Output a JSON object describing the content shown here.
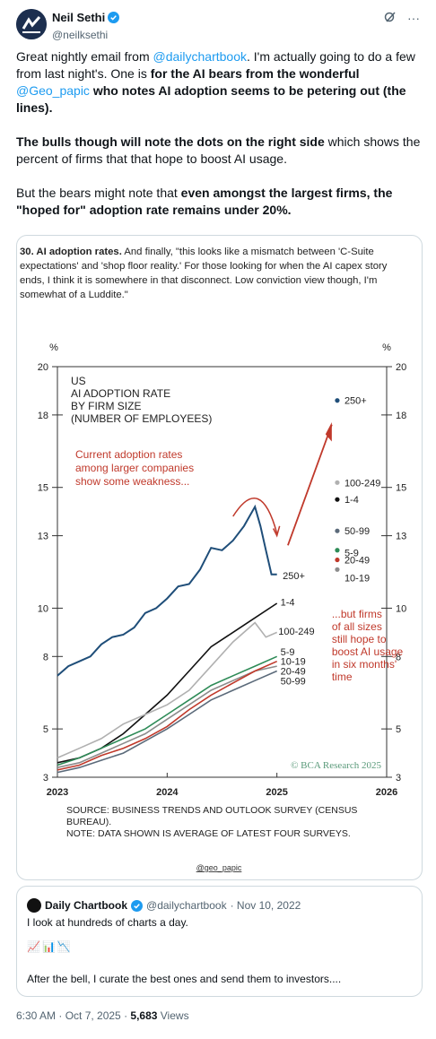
{
  "tweet": {
    "author_name": "Neil Sethi",
    "handle": "@neilksethi",
    "p1_a": "Great nightly email from ",
    "p1_mention1": "@dailychartbook",
    "p1_b": ".  I'm actually going to do a few from last night's. One is ",
    "p1_bold1": "for the AI bears from the wonderful",
    "p1_mention2": "@Geo_papic",
    "p1_bold2": " who notes AI adoption seems to be petering out (the lines).",
    "p2_bold": "The bulls though will note the dots on the right side",
    "p2_rest": " which shows the percent of firms that that hope to boost AI usage.",
    "p3_a": "But the bears might note that ",
    "p3_bold": "even amongst the largest firms, the \"hoped for\" adoption rate remains under 20%.",
    "timestamp": "6:30 AM · Oct 7, 2025 · ",
    "views_count": "5,683",
    "views_label": " Views"
  },
  "media": {
    "caption_bold": "30. AI adoption rates.",
    "caption_text": " And finally, \"this looks like a mismatch between 'C-Suite expectations' and 'shop floor reality.' For those looking for when the AI capex story ends, I think it is somewhere in that disconnect. Low conviction view though, I'm somewhat of a Luddite.\"",
    "credit": "@geo_papic"
  },
  "chart_data": {
    "type": "line",
    "title": "US\nAI ADOPTION RATE\nBY FIRM SIZE\n(NUMBER OF EMPLOYEES)",
    "ylabel": "%",
    "ylim": [
      3,
      20
    ],
    "yticks": [
      3,
      5,
      8,
      10,
      13,
      15,
      18,
      20
    ],
    "xlim": [
      2023,
      2026
    ],
    "xticks": [
      "2023",
      "2024",
      "2025",
      "2026"
    ],
    "annotation_left": "Current adoption rates\namong larger companies\nshow some weakness...",
    "annotation_right": "...but firms\nof all sizes\nstill hope to\nboost AI usage\nin six months'\ntime",
    "copyright": "© BCA Research 2025",
    "source": "SOURCE: BUSINESS TRENDS AND OUTLOOK SURVEY (CENSUS\nBUREAU).\nNOTE: DATA SHOWN IS AVERAGE OF LATEST FOUR SURVEYS.",
    "series": [
      {
        "name": "250+",
        "color": "#1f4e79",
        "x": [
          2023.0,
          2023.1,
          2023.2,
          2023.3,
          2023.4,
          2023.5,
          2023.6,
          2023.7,
          2023.8,
          2023.9,
          2024.0,
          2024.1,
          2024.2,
          2024.3,
          2024.4,
          2024.5,
          2024.6,
          2024.7,
          2024.75,
          2024.8,
          2024.85,
          2024.9,
          2024.95,
          2025.0
        ],
        "values": [
          7.2,
          7.6,
          7.8,
          8.0,
          8.5,
          8.8,
          8.9,
          9.2,
          9.8,
          10.0,
          10.4,
          10.9,
          11.0,
          11.6,
          12.5,
          12.4,
          12.8,
          13.4,
          13.8,
          14.2,
          13.4,
          12.4,
          11.4,
          11.4
        ]
      },
      {
        "name": "1-4",
        "color": "#111111",
        "x": [
          2023.0,
          2023.2,
          2023.4,
          2023.6,
          2023.8,
          2024.0,
          2024.2,
          2024.4,
          2024.6,
          2024.8,
          2025.0
        ],
        "values": [
          3.6,
          3.8,
          4.2,
          4.8,
          5.6,
          6.4,
          7.4,
          8.4,
          9.0,
          9.6,
          10.2
        ]
      },
      {
        "name": "100-249",
        "color": "#b0b0b0",
        "x": [
          2023.0,
          2023.2,
          2023.4,
          2023.6,
          2023.8,
          2024.0,
          2024.2,
          2024.4,
          2024.6,
          2024.8,
          2024.9,
          2025.0
        ],
        "values": [
          3.8,
          4.2,
          4.6,
          5.2,
          5.6,
          6.0,
          6.6,
          7.6,
          8.6,
          9.4,
          8.8,
          9.0
        ]
      },
      {
        "name": "5-9",
        "color": "#2e8b57",
        "x": [
          2023.0,
          2023.2,
          2023.4,
          2023.6,
          2023.8,
          2024.0,
          2024.2,
          2024.4,
          2024.6,
          2024.8,
          2025.0
        ],
        "values": [
          3.5,
          3.8,
          4.2,
          4.6,
          5.0,
          5.6,
          6.2,
          6.8,
          7.2,
          7.6,
          8.0
        ]
      },
      {
        "name": "10-19",
        "color": "#8c8c8c",
        "x": [
          2023.0,
          2023.2,
          2023.4,
          2023.6,
          2023.8,
          2024.0,
          2024.2,
          2024.4,
          2024.6,
          2024.8,
          2025.0
        ],
        "values": [
          3.4,
          3.6,
          4.0,
          4.4,
          4.8,
          5.4,
          6.0,
          6.6,
          7.0,
          7.4,
          7.6
        ]
      },
      {
        "name": "20-49",
        "color": "#c0392b",
        "x": [
          2023.0,
          2023.2,
          2023.4,
          2023.6,
          2023.8,
          2024.0,
          2024.2,
          2024.4,
          2024.6,
          2024.8,
          2025.0
        ],
        "values": [
          3.3,
          3.5,
          3.9,
          4.2,
          4.6,
          5.1,
          5.8,
          6.4,
          6.9,
          7.4,
          7.8
        ]
      },
      {
        "name": "50-99",
        "color": "#5b6a7a",
        "x": [
          2023.0,
          2023.2,
          2023.4,
          2023.6,
          2023.8,
          2024.0,
          2024.2,
          2024.4,
          2024.6,
          2024.8,
          2025.0
        ],
        "values": [
          3.2,
          3.4,
          3.7,
          4.0,
          4.5,
          5.0,
          5.6,
          6.2,
          6.6,
          7.0,
          7.4
        ]
      }
    ],
    "points": [
      {
        "name": "250+",
        "x": 2025.55,
        "value": 18.6,
        "color": "#1f4e79"
      },
      {
        "name": "100-249",
        "x": 2025.55,
        "value": 15.2,
        "color": "#b0b0b0"
      },
      {
        "name": "1-4",
        "x": 2025.55,
        "value": 14.5,
        "color": "#111111"
      },
      {
        "name": "50-99",
        "x": 2025.55,
        "value": 13.2,
        "color": "#5b6a7a"
      },
      {
        "name": "5-9",
        "x": 2025.55,
        "value": 12.4,
        "color": "#2e8b57"
      },
      {
        "name": "20-49",
        "x": 2025.55,
        "value": 12.0,
        "color": "#c0392b"
      },
      {
        "name": "10-19",
        "x": 2025.55,
        "value": 11.6,
        "color": "#8c8c8c"
      }
    ],
    "right_labels": [
      "250+",
      "100-249",
      "1-4",
      "50-99",
      "5-9",
      "20-49",
      "10-19"
    ],
    "end_labels": [
      "250+",
      "1-4",
      "100-249",
      "5-9",
      "10-19",
      "20-49",
      "50-99"
    ]
  },
  "quote": {
    "name": "Daily Chartbook",
    "handle": "@dailychartbook",
    "date": "· Nov 10, 2022",
    "line1": "I look at hundreds of charts a day.",
    "emojis": [
      "📈",
      "📊",
      "📉"
    ],
    "line2": "After the bell, I curate the best ones and send them to investors...."
  }
}
